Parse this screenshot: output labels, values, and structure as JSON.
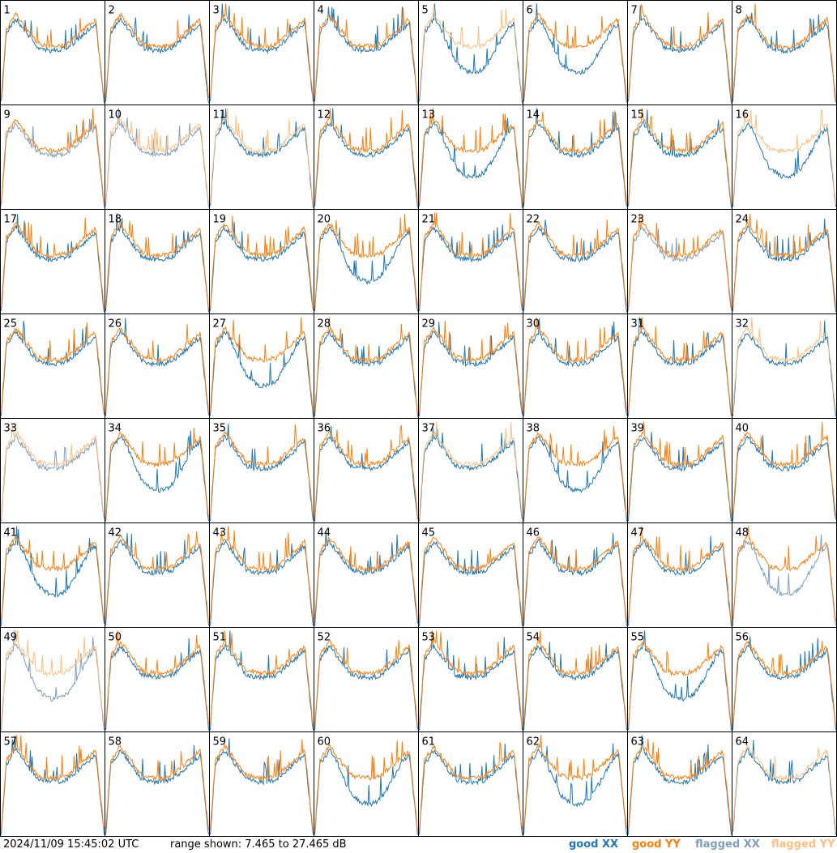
{
  "footer": {
    "timestamp": "2024/11/09 15:45:02 UTC",
    "range": "range shown: 7.465 to 27.465 dB"
  },
  "legend": [
    {
      "label": "good",
      "pol": "XX",
      "color": "#1f77b4"
    },
    {
      "label": "good",
      "pol": "YY",
      "color": "#ff7f0e"
    },
    {
      "label": "flagged",
      "pol": "XX",
      "color": "#7f9fbf"
    },
    {
      "label": "flagged",
      "pol": "YY",
      "color": "#ffbf80"
    }
  ],
  "colors": {
    "good_xx": "#1f77b4",
    "good_yy": "#ff7f0e",
    "flagged_xx": "#7f9fbf",
    "flagged_yy": "#ffbf80"
  },
  "chart_data": {
    "type": "line",
    "layout": "8x8 small-multiples grid of spectra per antenna",
    "ylim_db": [
      7.465,
      27.465
    ],
    "series": [
      "XX",
      "YY"
    ],
    "panels": [
      {
        "label": "1",
        "xx": "good",
        "yy": "good"
      },
      {
        "label": "2",
        "xx": "good",
        "yy": "good"
      },
      {
        "label": "3",
        "xx": "good",
        "yy": "good"
      },
      {
        "label": "4",
        "xx": "good",
        "yy": "good"
      },
      {
        "label": "5",
        "xx": "good",
        "yy": "flagged"
      },
      {
        "label": "6",
        "xx": "good",
        "yy": "good"
      },
      {
        "label": "7",
        "xx": "good",
        "yy": "good"
      },
      {
        "label": "8",
        "xx": "good",
        "yy": "good"
      },
      {
        "label": "9",
        "xx": "flagged",
        "yy": "good"
      },
      {
        "label": "10",
        "xx": "flagged",
        "yy": "flagged"
      },
      {
        "label": "11",
        "xx": "good",
        "yy": "flagged"
      },
      {
        "label": "12",
        "xx": "good",
        "yy": "good"
      },
      {
        "label": "13",
        "xx": "good",
        "yy": "good"
      },
      {
        "label": "14",
        "xx": "good",
        "yy": "good"
      },
      {
        "label": "15",
        "xx": "good",
        "yy": "good"
      },
      {
        "label": "16",
        "xx": "good",
        "yy": "flagged"
      },
      {
        "label": "17",
        "xx": "good",
        "yy": "good"
      },
      {
        "label": "18",
        "xx": "good",
        "yy": "good"
      },
      {
        "label": "19",
        "xx": "good",
        "yy": "good"
      },
      {
        "label": "20",
        "xx": "good",
        "yy": "good"
      },
      {
        "label": "21",
        "xx": "good",
        "yy": "good"
      },
      {
        "label": "22",
        "xx": "good",
        "yy": "good"
      },
      {
        "label": "23",
        "xx": "flagged",
        "yy": "good"
      },
      {
        "label": "24",
        "xx": "good",
        "yy": "good"
      },
      {
        "label": "25",
        "xx": "good",
        "yy": "good"
      },
      {
        "label": "26",
        "xx": "good",
        "yy": "good"
      },
      {
        "label": "27",
        "xx": "good",
        "yy": "good"
      },
      {
        "label": "28",
        "xx": "good",
        "yy": "good"
      },
      {
        "label": "29",
        "xx": "good",
        "yy": "good"
      },
      {
        "label": "30",
        "xx": "good",
        "yy": "good"
      },
      {
        "label": "31",
        "xx": "good",
        "yy": "good"
      },
      {
        "label": "32",
        "xx": "good",
        "yy": "flagged"
      },
      {
        "label": "33",
        "xx": "flagged",
        "yy": "flagged"
      },
      {
        "label": "34",
        "xx": "good",
        "yy": "good"
      },
      {
        "label": "35",
        "xx": "good",
        "yy": "good"
      },
      {
        "label": "36",
        "xx": "good",
        "yy": "good"
      },
      {
        "label": "37",
        "xx": "good",
        "yy": "flagged"
      },
      {
        "label": "38",
        "xx": "good",
        "yy": "good"
      },
      {
        "label": "39",
        "xx": "good",
        "yy": "good"
      },
      {
        "label": "40",
        "xx": "good",
        "yy": "good"
      },
      {
        "label": "41",
        "xx": "good",
        "yy": "good"
      },
      {
        "label": "42",
        "xx": "good",
        "yy": "good"
      },
      {
        "label": "43",
        "xx": "good",
        "yy": "good"
      },
      {
        "label": "44",
        "xx": "good",
        "yy": "good"
      },
      {
        "label": "45",
        "xx": "good",
        "yy": "good"
      },
      {
        "label": "46",
        "xx": "good",
        "yy": "good"
      },
      {
        "label": "47",
        "xx": "good",
        "yy": "good"
      },
      {
        "label": "48",
        "xx": "flagged",
        "yy": "good"
      },
      {
        "label": "49",
        "xx": "flagged",
        "yy": "flagged"
      },
      {
        "label": "50",
        "xx": "good",
        "yy": "good"
      },
      {
        "label": "51",
        "xx": "good",
        "yy": "good"
      },
      {
        "label": "52",
        "xx": "good",
        "yy": "good"
      },
      {
        "label": "53",
        "xx": "good",
        "yy": "good"
      },
      {
        "label": "54",
        "xx": "good",
        "yy": "good"
      },
      {
        "label": "55",
        "xx": "good",
        "yy": "good"
      },
      {
        "label": "56",
        "xx": "good",
        "yy": "good"
      },
      {
        "label": "57",
        "xx": "good",
        "yy": "good"
      },
      {
        "label": "58",
        "xx": "good",
        "yy": "good"
      },
      {
        "label": "59",
        "xx": "good",
        "yy": "good"
      },
      {
        "label": "60",
        "xx": "good",
        "yy": "good"
      },
      {
        "label": "61",
        "xx": "good",
        "yy": "good"
      },
      {
        "label": "62",
        "xx": "good",
        "yy": "good"
      },
      {
        "label": "63",
        "xx": "good",
        "yy": "good"
      },
      {
        "label": "64",
        "xx": "good",
        "yy": "flagged"
      }
    ]
  }
}
